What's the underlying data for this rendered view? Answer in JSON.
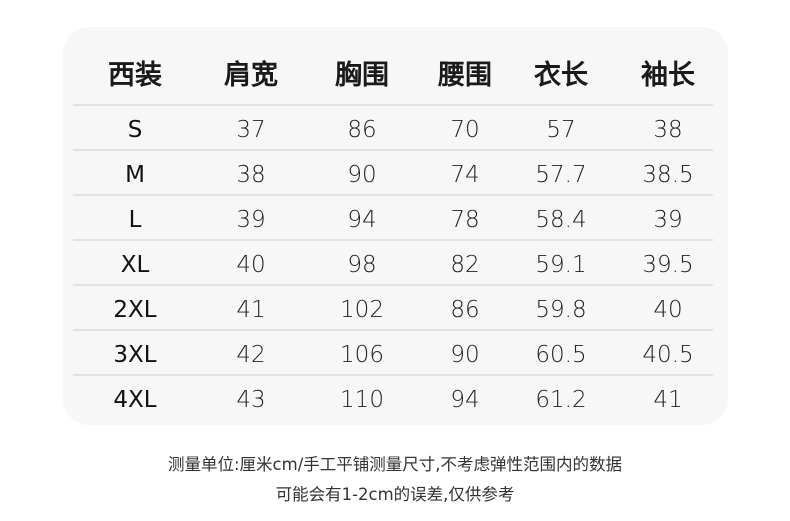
{
  "table": {
    "headers": [
      "西装",
      "肩宽",
      "胸围",
      "腰围",
      "衣长",
      "袖长"
    ],
    "rows": [
      [
        "S",
        "37",
        "86",
        "70",
        "57",
        "38"
      ],
      [
        "M",
        "38",
        "90",
        "74",
        "57.7",
        "38.5"
      ],
      [
        "L",
        "39",
        "94",
        "78",
        "58.4",
        "39"
      ],
      [
        "XL",
        "40",
        "98",
        "82",
        "59.1",
        "39.5"
      ],
      [
        "2XL",
        "41",
        "102",
        "86",
        "59.8",
        "40"
      ],
      [
        "3XL",
        "42",
        "106",
        "90",
        "60.5",
        "40.5"
      ],
      [
        "4XL",
        "43",
        "110",
        "94",
        "61.2",
        "41"
      ]
    ]
  },
  "notes": {
    "line1": "测量单位:厘米cm/手工平铺测量尺寸,不考虑弹性范围内的数据",
    "line2": "可能会有1-2cm的误差,仅供参考"
  },
  "colors": {
    "card_bg": "#f7f7f7",
    "divider": "#e2e2e2"
  }
}
